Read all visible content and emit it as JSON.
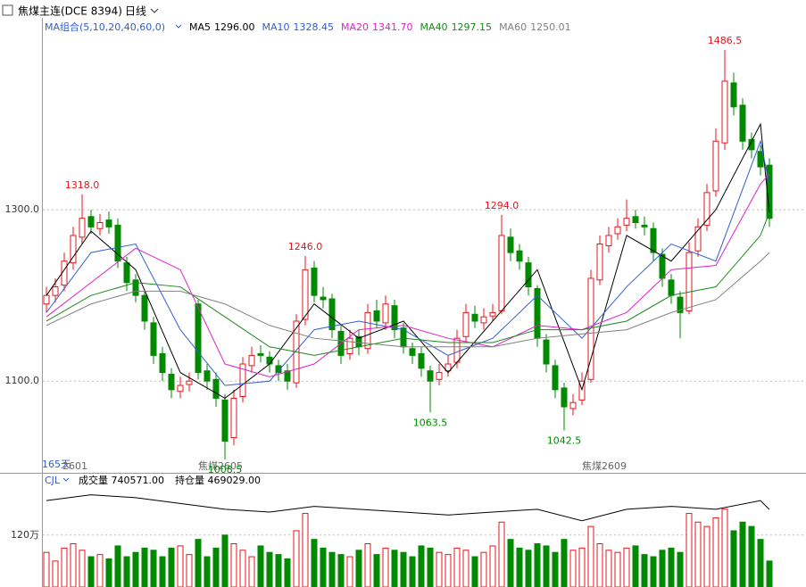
{
  "header": {
    "title": "焦煤主连(DCE 8394)",
    "period": "日线",
    "ma_group": "MA组合(5,10,20,40,60,0)"
  },
  "chart_data": [
    {
      "type": "candlestick",
      "open": [
        1190,
        1200,
        1212,
        1238,
        1268,
        1292,
        1278,
        1288,
        1282,
        1238,
        1218,
        1200,
        1168,
        1132,
        1108,
        1088,
        1096,
        1190,
        1112,
        1102,
        1078,
        1034,
        1082,
        1118,
        1132,
        1128,
        1118,
        1112,
        1098,
        1172,
        1232,
        1198,
        1196,
        1158,
        1132,
        1152,
        1138,
        1182,
        1168,
        1188,
        1162,
        1138,
        1132,
        1112,
        1102,
        1112,
        1122,
        1152,
        1178,
        1168,
        1176,
        1182,
        1268,
        1252,
        1238,
        1208,
        1148,
        1118,
        1092,
        1068,
        1078,
        1102,
        1218,
        1258,
        1272,
        1282,
        1292,
        1282,
        1278,
        1248,
        1218,
        1198,
        1182,
        1252,
        1282,
        1322,
        1378,
        1448,
        1422,
        1382,
        1368,
        1352
      ],
      "high": [
        1210,
        1220,
        1250,
        1280,
        1318,
        1300,
        1295,
        1298,
        1290,
        1245,
        1225,
        1205,
        1175,
        1140,
        1115,
        1105,
        1110,
        1195,
        1120,
        1110,
        1085,
        1090,
        1128,
        1140,
        1142,
        1135,
        1125,
        1120,
        1178,
        1246,
        1240,
        1210,
        1202,
        1165,
        1160,
        1160,
        1190,
        1195,
        1200,
        1195,
        1168,
        1145,
        1140,
        1118,
        1120,
        1130,
        1160,
        1190,
        1188,
        1185,
        1190,
        1294,
        1278,
        1260,
        1245,
        1212,
        1155,
        1125,
        1098,
        1085,
        1110,
        1230,
        1270,
        1280,
        1290,
        1312,
        1300,
        1292,
        1285,
        1255,
        1225,
        1205,
        1262,
        1290,
        1330,
        1395,
        1486.5,
        1460,
        1430,
        1390,
        1375,
        1360
      ],
      "low": [
        1180,
        1192,
        1205,
        1230,
        1260,
        1272,
        1270,
        1272,
        1232,
        1205,
        1192,
        1160,
        1120,
        1100,
        1080,
        1080,
        1088,
        1102,
        1090,
        1070,
        1008.5,
        1025,
        1075,
        1110,
        1122,
        1110,
        1100,
        1090,
        1092,
        1165,
        1192,
        1185,
        1150,
        1120,
        1125,
        1130,
        1132,
        1162,
        1160,
        1150,
        1132,
        1120,
        1105,
        1063.5,
        1095,
        1105,
        1115,
        1145,
        1162,
        1160,
        1170,
        1178,
        1240,
        1230,
        1200,
        1140,
        1110,
        1080,
        1042.5,
        1060,
        1072,
        1098,
        1212,
        1250,
        1265,
        1275,
        1278,
        1270,
        1240,
        1210,
        1190,
        1150,
        1178,
        1245,
        1275,
        1315,
        1370,
        1410,
        1370,
        1360,
        1340,
        1280
      ],
      "close": [
        1200,
        1210,
        1240,
        1270,
        1290,
        1280,
        1285,
        1280,
        1240,
        1215,
        1200,
        1170,
        1130,
        1110,
        1090,
        1095,
        1100,
        1110,
        1100,
        1080,
        1030,
        1080,
        1120,
        1130,
        1130,
        1120,
        1110,
        1100,
        1170,
        1230,
        1200,
        1195,
        1160,
        1130,
        1150,
        1140,
        1180,
        1170,
        1190,
        1160,
        1140,
        1130,
        1115,
        1100,
        1110,
        1120,
        1150,
        1180,
        1170,
        1175,
        1180,
        1270,
        1250,
        1240,
        1210,
        1150,
        1120,
        1090,
        1070,
        1075,
        1100,
        1220,
        1260,
        1270,
        1280,
        1290,
        1285,
        1280,
        1250,
        1220,
        1200,
        1180,
        1250,
        1280,
        1320,
        1380,
        1450,
        1420,
        1380,
        1370,
        1350,
        1290
      ],
      "up_color": "#e8141d",
      "down_color": "#008a00",
      "ylim": [
        993,
        1526
      ],
      "yticks": [
        {
          "value": 1100,
          "label": "1100.0"
        },
        {
          "value": 1300,
          "label": "1300.0"
        }
      ],
      "grid": true,
      "ma_x": [
        0,
        5,
        10,
        15,
        20,
        25,
        30,
        35,
        40,
        45,
        50,
        55,
        60,
        65,
        70,
        75,
        80,
        81
      ],
      "series": [
        {
          "name": "MA5",
          "legend_value": "1296.00",
          "color": "#000000",
          "values": [
            1200,
            1275,
            1230,
            1110,
            1080,
            1120,
            1190,
            1150,
            1170,
            1110,
            1170,
            1230,
            1090,
            1270,
            1240,
            1300,
            1400,
            1296
          ]
        },
        {
          "name": "MA10",
          "legend_value": "1328.45",
          "color": "#2f5fd0",
          "values": [
            1180,
            1250,
            1260,
            1160,
            1095,
            1100,
            1160,
            1170,
            1160,
            1130,
            1150,
            1200,
            1150,
            1210,
            1260,
            1240,
            1380,
            1328.45
          ]
        },
        {
          "name": "MA20",
          "legend_value": "1341.70",
          "color": "#e020c8",
          "values": [
            1175,
            1215,
            1255,
            1230,
            1120,
            1105,
            1120,
            1160,
            1165,
            1150,
            1140,
            1165,
            1160,
            1180,
            1230,
            1235,
            1330,
            1341.7
          ]
        },
        {
          "name": "MA40",
          "legend_value": "1297.15",
          "color": "#1a8a1a",
          "values": [
            1170,
            1200,
            1215,
            1210,
            1175,
            1140,
            1130,
            1140,
            1150,
            1145,
            1145,
            1160,
            1160,
            1170,
            1200,
            1210,
            1270,
            1297.15
          ]
        },
        {
          "name": "MA60",
          "legend_value": "1250.01",
          "color": "#808080",
          "values": [
            1165,
            1190,
            1205,
            1205,
            1190,
            1165,
            1150,
            1145,
            1140,
            1140,
            1140,
            1150,
            1155,
            1160,
            1180,
            1195,
            1240,
            1250.01
          ]
        }
      ],
      "annotations": [
        {
          "label": "1318.0",
          "candle": 4,
          "at": "high"
        },
        {
          "label": "1008.5",
          "candle": 20,
          "at": "low"
        },
        {
          "label": "1246.0",
          "candle": 29,
          "at": "high"
        },
        {
          "label": "1063.5",
          "candle": 43,
          "at": "low"
        },
        {
          "label": "1294.0",
          "candle": 51,
          "at": "high"
        },
        {
          "label": "1042.5",
          "candle": 58,
          "at": "low"
        },
        {
          "label": "1486.5",
          "candle": 76,
          "at": "high"
        }
      ],
      "x_labels": [
        "165天",
        "2601",
        "焦煤2605",
        "焦煤2609"
      ]
    },
    {
      "type": "volume",
      "title": "CJL",
      "volume_label": "成交量 740571.00",
      "oi_label": "持仓量 469029.00",
      "values": [
        80,
        60,
        90,
        100,
        85,
        70,
        75,
        65,
        95,
        70,
        80,
        90,
        85,
        70,
        90,
        95,
        75,
        110,
        70,
        90,
        120,
        100,
        85,
        70,
        95,
        80,
        75,
        65,
        130,
        170,
        110,
        90,
        80,
        75,
        70,
        85,
        100,
        75,
        90,
        85,
        80,
        70,
        95,
        90,
        80,
        75,
        90,
        85,
        70,
        80,
        95,
        150,
        110,
        90,
        85,
        100,
        95,
        80,
        110,
        85,
        90,
        140,
        100,
        85,
        80,
        90,
        95,
        75,
        70,
        85,
        90,
        80,
        170,
        150,
        140,
        160,
        180,
        130,
        150,
        140,
        110,
        60
      ],
      "ylim": [
        0,
        233
      ],
      "yticks": [
        {
          "value": 120,
          "label": "120万"
        }
      ],
      "oi_x": [
        0,
        5,
        10,
        15,
        20,
        25,
        30,
        35,
        40,
        45,
        50,
        55,
        60,
        65,
        70,
        75,
        80,
        81
      ],
      "oi_values": [
        50,
        52,
        51,
        49,
        47,
        46,
        48,
        47,
        46,
        45,
        46,
        47,
        43,
        47,
        48,
        47,
        50,
        46.9
      ],
      "y2lim": [
        20,
        55
      ],
      "oi_color": "#000000"
    }
  ]
}
